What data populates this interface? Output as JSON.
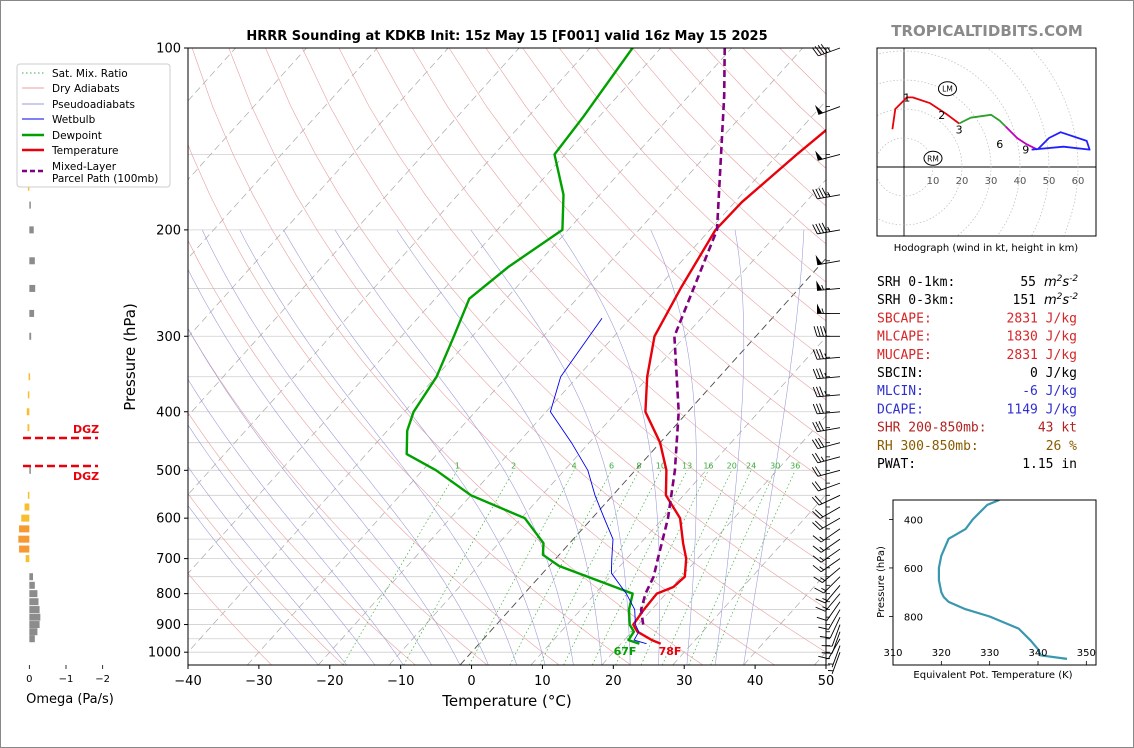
{
  "chart_data": [
    {
      "type": "line",
      "kind": "skew-t log-p sounding",
      "title": "HRRR Sounding at KDKB Init: 15z May 15 [F001] valid 16z May 15 2025",
      "xlabel": "Temperature (°C)",
      "ylabel": "Pressure (hPa)",
      "xlim": [
        -40,
        50
      ],
      "ylim": [
        1050,
        100
      ],
      "y_scale": "log",
      "x_ticks": [
        -40,
        -30,
        -20,
        -10,
        0,
        10,
        20,
        30,
        40,
        50
      ],
      "y_ticks": [
        100,
        200,
        300,
        400,
        500,
        600,
        700,
        800,
        900,
        1000
      ],
      "mixing_ratio_labels": [
        "1",
        "2",
        "4",
        "6",
        "8",
        "10",
        "13",
        "16",
        "20",
        "24",
        "30",
        "36"
      ],
      "surface_labels": {
        "temperature": "78F",
        "dewpoint": "67F"
      },
      "legend": {
        "position": "top-left",
        "entries": [
          "Sat. Mix. Ratio",
          "Dry Adiabats",
          "Pseudoadiabats",
          "Wetbulb",
          "Dewpoint",
          "Temperature",
          "Mixed-Layer\nParcel Path (100mb)"
        ]
      },
      "series": [
        {
          "name": "Temperature",
          "color": "#e8000b",
          "points": [
            [
              25.6,
              968
            ],
            [
              23.9,
              955
            ],
            [
              20.8,
              925
            ],
            [
              19.3,
              900
            ],
            [
              18.9,
              850
            ],
            [
              18.7,
              800
            ],
            [
              20.2,
              780
            ],
            [
              20.5,
              750
            ],
            [
              18.4,
              700
            ],
            [
              16.0,
              660
            ],
            [
              12.4,
              600
            ],
            [
              7.5,
              550
            ],
            [
              4.4,
              500
            ],
            [
              0.0,
              450
            ],
            [
              -6.0,
              400
            ],
            [
              -10.2,
              350
            ],
            [
              -14.3,
              300
            ],
            [
              -16.7,
              250
            ],
            [
              -19.2,
              200
            ],
            [
              -19.0,
              180
            ],
            [
              -17.3,
              150
            ],
            [
              -15.7,
              130
            ],
            [
              -13.0,
              115
            ],
            [
              -9.0,
              100
            ]
          ]
        },
        {
          "name": "Dewpoint",
          "color": "#00a000",
          "points": [
            [
              22.6,
              968
            ],
            [
              20.6,
              955
            ],
            [
              20.3,
              925
            ],
            [
              18.8,
              900
            ],
            [
              16.8,
              850
            ],
            [
              15.3,
              800
            ],
            [
              1.4,
              720
            ],
            [
              -2.3,
              690
            ],
            [
              -3.7,
              660
            ],
            [
              -9.5,
              600
            ],
            [
              -20.0,
              550
            ],
            [
              -28.1,
              500
            ],
            [
              -34.3,
              470
            ],
            [
              -37.2,
              430
            ],
            [
              -38.7,
              400
            ],
            [
              -39.9,
              350
            ],
            [
              -42.6,
              300
            ],
            [
              -45.2,
              260
            ],
            [
              -43.7,
              230
            ],
            [
              -40.8,
              200
            ],
            [
              -45.1,
              175
            ],
            [
              -51.5,
              150
            ],
            [
              -52.2,
              130
            ],
            [
              -54.0,
              100
            ]
          ]
        },
        {
          "name": "Wetbulb",
          "color": "#0000ee",
          "points": [
            [
              23.6,
              968
            ],
            [
              21.4,
              955
            ],
            [
              21.0,
              925
            ],
            [
              19.6,
              900
            ],
            [
              17.6,
              850
            ],
            [
              14.4,
              800
            ],
            [
              9.7,
              740
            ],
            [
              7.9,
              700
            ],
            [
              5.6,
              650
            ],
            [
              1.7,
              600
            ],
            [
              -2.5,
              550
            ],
            [
              -6.7,
              500
            ],
            [
              -12.5,
              450
            ],
            [
              -19.4,
              400
            ],
            [
              -22.4,
              350
            ],
            [
              -23.5,
              300
            ],
            [
              -24.0,
              280
            ]
          ]
        },
        {
          "name": "Mixed-Layer\nParcel Path (100mb)",
          "color": "#800080",
          "points": [
            [
              20.7,
              900
            ],
            [
              18.5,
              850
            ],
            [
              17.1,
              800
            ],
            [
              16.1,
              750
            ],
            [
              14.4,
              700
            ],
            [
              10.7,
              600
            ],
            [
              5.6,
              500
            ],
            [
              -1.3,
              400
            ],
            [
              -11.5,
              300
            ],
            [
              -19.0,
              200
            ],
            [
              -35.0,
              120
            ],
            [
              -41.0,
              100
            ]
          ]
        }
      ],
      "wind_barbs": [
        {
          "p": 100,
          "dir": 250,
          "kt": 45
        },
        {
          "p": 125,
          "dir": 250,
          "kt": 50
        },
        {
          "p": 150,
          "dir": 255,
          "kt": 50
        },
        {
          "p": 175,
          "dir": 260,
          "kt": 45
        },
        {
          "p": 200,
          "dir": 260,
          "kt": 45
        },
        {
          "p": 225,
          "dir": 260,
          "kt": 50
        },
        {
          "p": 250,
          "dir": 265,
          "kt": 55
        },
        {
          "p": 275,
          "dir": 270,
          "kt": 55
        },
        {
          "p": 300,
          "dir": 270,
          "kt": 40
        },
        {
          "p": 325,
          "dir": 265,
          "kt": 35
        },
        {
          "p": 350,
          "dir": 265,
          "kt": 35
        },
        {
          "p": 375,
          "dir": 265,
          "kt": 35
        },
        {
          "p": 400,
          "dir": 265,
          "kt": 30
        },
        {
          "p": 425,
          "dir": 260,
          "kt": 30
        },
        {
          "p": 450,
          "dir": 255,
          "kt": 30
        },
        {
          "p": 475,
          "dir": 255,
          "kt": 25
        },
        {
          "p": 500,
          "dir": 255,
          "kt": 20
        },
        {
          "p": 525,
          "dir": 250,
          "kt": 20
        },
        {
          "p": 550,
          "dir": 245,
          "kt": 20
        },
        {
          "p": 575,
          "dir": 240,
          "kt": 20
        },
        {
          "p": 600,
          "dir": 240,
          "kt": 20
        },
        {
          "p": 625,
          "dir": 235,
          "kt": 15
        },
        {
          "p": 650,
          "dir": 235,
          "kt": 15
        },
        {
          "p": 675,
          "dir": 235,
          "kt": 15
        },
        {
          "p": 700,
          "dir": 235,
          "kt": 15
        },
        {
          "p": 725,
          "dir": 230,
          "kt": 15
        },
        {
          "p": 750,
          "dir": 225,
          "kt": 15
        },
        {
          "p": 775,
          "dir": 220,
          "kt": 15
        },
        {
          "p": 800,
          "dir": 220,
          "kt": 15
        },
        {
          "p": 825,
          "dir": 215,
          "kt": 10
        },
        {
          "p": 850,
          "dir": 210,
          "kt": 10
        },
        {
          "p": 875,
          "dir": 205,
          "kt": 10
        },
        {
          "p": 900,
          "dir": 200,
          "kt": 10
        },
        {
          "p": 925,
          "dir": 200,
          "kt": 10
        },
        {
          "p": 950,
          "dir": 210,
          "kt": 10
        },
        {
          "p": 975,
          "dir": 200,
          "kt": 5
        },
        {
          "p": 1000,
          "dir": 200,
          "kt": 5
        }
      ]
    },
    {
      "type": "bar",
      "kind": "omega profile",
      "xlabel": "Omega (Pa/s)",
      "x_ticks": [
        "0",
        "−1",
        "−2"
      ],
      "xlim": [
        0.2,
        -2.2
      ],
      "dgz_label": "DGZ",
      "dgz_bounds_hpa": [
        441,
        492
      ],
      "values": [
        {
          "p": 110,
          "omega": 0.02
        },
        {
          "p": 170,
          "omega": 0.04
        },
        {
          "p": 182,
          "omega": -0.02
        },
        {
          "p": 200,
          "omega": -0.12
        },
        {
          "p": 225,
          "omega": -0.15
        },
        {
          "p": 250,
          "omega": -0.16
        },
        {
          "p": 275,
          "omega": -0.13
        },
        {
          "p": 300,
          "omega": -0.05
        },
        {
          "p": 350,
          "omega": 0.02
        },
        {
          "p": 375,
          "omega": 0.04
        },
        {
          "p": 400,
          "omega": 0.07
        },
        {
          "p": 425,
          "omega": 0.05
        },
        {
          "p": 500,
          "omega": -0.01
        },
        {
          "p": 550,
          "omega": 0.04
        },
        {
          "p": 575,
          "omega": 0.13
        },
        {
          "p": 600,
          "omega": 0.22
        },
        {
          "p": 625,
          "omega": 0.28
        },
        {
          "p": 650,
          "omega": 0.3
        },
        {
          "p": 675,
          "omega": 0.28
        },
        {
          "p": 700,
          "omega": 0.1
        },
        {
          "p": 750,
          "omega": -0.1
        },
        {
          "p": 775,
          "omega": -0.15
        },
        {
          "p": 800,
          "omega": -0.22
        },
        {
          "p": 825,
          "omega": -0.25
        },
        {
          "p": 850,
          "omega": -0.28
        },
        {
          "p": 875,
          "omega": -0.3
        },
        {
          "p": 900,
          "omega": -0.28
        },
        {
          "p": 925,
          "omega": -0.22
        },
        {
          "p": 950,
          "omega": -0.15
        }
      ]
    },
    {
      "type": "line",
      "kind": "hodograph",
      "title": "Hodograph (wind in kt, height in km)",
      "ring_labels": [
        "10",
        "20",
        "30",
        "40",
        "50",
        "60"
      ],
      "markers": [
        {
          "label": "LM",
          "u": 15,
          "v": 27
        },
        {
          "label": "RM",
          "u": 10,
          "v": 3
        }
      ],
      "segments": [
        {
          "color": "#e8000b",
          "points": [
            [
              -4,
              13
            ],
            [
              -3,
              20
            ],
            [
              1,
              24
            ],
            [
              3,
              24
            ],
            [
              9,
              22
            ],
            [
              15,
              18
            ],
            [
              19,
              15
            ]
          ]
        },
        {
          "color": "#2ca02c",
          "points": [
            [
              19,
              15
            ],
            [
              23,
              17
            ],
            [
              30,
              18
            ],
            [
              33,
              16
            ],
            [
              35,
              14
            ]
          ]
        },
        {
          "color": "#c000c0",
          "points": [
            [
              35,
              14
            ],
            [
              39,
              10
            ],
            [
              42,
              8
            ],
            [
              46,
              6
            ]
          ]
        },
        {
          "color": "#2020ff",
          "points": [
            [
              46,
              6
            ],
            [
              50,
              10
            ],
            [
              54,
              12
            ],
            [
              63,
              9
            ],
            [
              64,
              6
            ],
            [
              55,
              7
            ],
            [
              44,
              6
            ]
          ]
        }
      ],
      "height_labels": [
        {
          "label": "1",
          "u": 1,
          "v": 24
        },
        {
          "label": "2",
          "u": 13,
          "v": 18
        },
        {
          "label": "3",
          "u": 19,
          "v": 13
        },
        {
          "label": "6",
          "u": 33,
          "v": 8
        },
        {
          "label": "9",
          "u": 42,
          "v": 6
        }
      ]
    },
    {
      "type": "line",
      "kind": "theta-e profile",
      "xlabel": "Equivalent Pot. Temperature (K)",
      "ylabel": "Pressure (hPa)",
      "xlim": [
        310,
        352
      ],
      "ylim": [
        1000,
        320
      ],
      "x_ticks": [
        310,
        320,
        330,
        340,
        350
      ],
      "y_ticks": [
        400,
        600,
        800
      ],
      "series": [
        {
          "name": "Theta-E",
          "color": "#3a97b0",
          "points": [
            [
              346,
              975
            ],
            [
              340.5,
              960
            ],
            [
              340,
              935
            ],
            [
              338.5,
              900
            ],
            [
              336,
              850
            ],
            [
              330,
              800
            ],
            [
              325,
              770
            ],
            [
              321.5,
              740
            ],
            [
              320.5,
              720
            ],
            [
              320,
              700
            ],
            [
              319.5,
              650
            ],
            [
              319.5,
              600
            ],
            [
              320,
              550
            ],
            [
              321.5,
              480
            ],
            [
              325,
              440
            ],
            [
              326.5,
              400
            ],
            [
              328,
              370
            ],
            [
              329.5,
              340
            ],
            [
              332,
              320
            ]
          ]
        }
      ]
    }
  ],
  "branding": "TROPICALTIDBITS.COM",
  "indices": [
    {
      "label": "SRH 0-1km:",
      "value": "55",
      "unit": "m2s-2",
      "color": "#000000"
    },
    {
      "label": "SRH 0-3km:",
      "value": "151",
      "unit": "m2s-2",
      "color": "#000000"
    },
    {
      "label": "SBCAPE:",
      "value": "2831 J/kg",
      "color": "#d62728"
    },
    {
      "label": "MLCAPE:",
      "value": "1830 J/kg",
      "color": "#d62728"
    },
    {
      "label": "MUCAPE:",
      "value": "2831 J/kg",
      "color": "#d62728"
    },
    {
      "label": "SBCIN:",
      "value": "0 J/kg",
      "color": "#000000"
    },
    {
      "label": "MLCIN:",
      "value": "-6 J/kg",
      "color": "#2f2fd0"
    },
    {
      "label": "DCAPE:",
      "value": "1149 J/kg",
      "color": "#2f2fd0"
    },
    {
      "label": "SHR 200-850mb:",
      "value": "43 kt",
      "color": "#b22222"
    },
    {
      "label": "RH 300-850mb:",
      "value": "26 %",
      "color": "#8b5a00"
    },
    {
      "label": "PWAT:",
      "value": "1.15 in",
      "color": "#000000"
    }
  ]
}
